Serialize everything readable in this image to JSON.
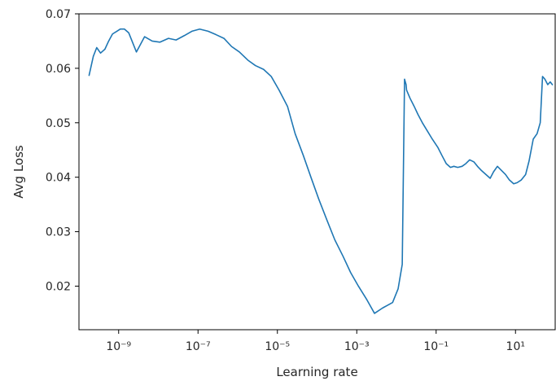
{
  "chart_data": {
    "type": "line",
    "title": "",
    "xlabel": "Learning rate",
    "ylabel": "Avg Loss",
    "x_scale": "log",
    "xlim": [
      1e-10,
      100.0
    ],
    "ylim": [
      0.012,
      0.07
    ],
    "grid": false,
    "line_color": "#1f77b4",
    "x_ticks": [
      {
        "value": 1e-09,
        "label": "10⁻⁹"
      },
      {
        "value": 1e-07,
        "label": "10⁻⁷"
      },
      {
        "value": 1e-05,
        "label": "10⁻⁵"
      },
      {
        "value": 0.001,
        "label": "10⁻³"
      },
      {
        "value": 0.1,
        "label": "10⁻¹"
      },
      {
        "value": 10,
        "label": "10¹"
      }
    ],
    "y_ticks": [
      {
        "value": 0.02,
        "label": "0.02"
      },
      {
        "value": 0.03,
        "label": "0.03"
      },
      {
        "value": 0.04,
        "label": "0.04"
      },
      {
        "value": 0.05,
        "label": "0.05"
      },
      {
        "value": 0.06,
        "label": "0.06"
      },
      {
        "value": 0.07,
        "label": "0.07"
      }
    ],
    "series": [
      {
        "x": [
          1.8e-10,
          2.3e-10,
          2.8e-10,
          3.5e-10,
          4.5e-10,
          5.6e-10,
          7e-10,
          9e-10,
          1.1e-09,
          1.4e-09,
          1.8e-09,
          2.8e-09,
          4.5e-09,
          7e-09,
          1.1e-08,
          1.8e-08,
          2.8e-08,
          4.5e-08,
          7e-08,
          1.1e-07,
          1.8e-07,
          2.8e-07,
          4.5e-07,
          7e-07,
          1.1e-06,
          1.8e-06,
          2.8e-06,
          4.5e-06,
          7e-06,
          1.1e-05,
          1.8e-05,
          2.8e-05,
          4.5e-05,
          7e-05,
          0.00011,
          0.00018,
          0.00028,
          0.00045,
          0.0007,
          0.0011,
          0.0018,
          0.0028,
          0.0045,
          0.006,
          0.008,
          0.011,
          0.014,
          0.016,
          0.0175,
          0.018,
          0.022,
          0.028,
          0.035,
          0.045,
          0.06,
          0.08,
          0.11,
          0.14,
          0.18,
          0.23,
          0.28,
          0.35,
          0.45,
          0.56,
          0.7,
          0.9,
          1.1,
          1.4,
          1.8,
          2.3,
          2.8,
          3.5,
          4.5,
          5.6,
          7,
          9,
          11,
          14,
          18,
          22,
          28,
          35,
          42,
          48,
          55,
          65,
          75,
          85
        ],
        "y": [
          0.0587,
          0.0622,
          0.0638,
          0.0628,
          0.0635,
          0.065,
          0.0663,
          0.0668,
          0.0672,
          0.0672,
          0.0665,
          0.063,
          0.0658,
          0.065,
          0.0648,
          0.0655,
          0.0652,
          0.066,
          0.0668,
          0.0672,
          0.0668,
          0.0662,
          0.0655,
          0.064,
          0.063,
          0.0615,
          0.0605,
          0.0598,
          0.0585,
          0.056,
          0.053,
          0.048,
          0.044,
          0.04,
          0.036,
          0.032,
          0.0285,
          0.0255,
          0.0225,
          0.02,
          0.0175,
          0.015,
          0.016,
          0.0165,
          0.017,
          0.0195,
          0.024,
          0.058,
          0.057,
          0.056,
          0.0545,
          0.053,
          0.0515,
          0.05,
          0.0485,
          0.047,
          0.0455,
          0.044,
          0.0425,
          0.0418,
          0.042,
          0.0418,
          0.042,
          0.0425,
          0.0432,
          0.0428,
          0.042,
          0.0412,
          0.0405,
          0.0398,
          0.041,
          0.042,
          0.0412,
          0.0405,
          0.0395,
          0.0388,
          0.039,
          0.0395,
          0.0405,
          0.043,
          0.047,
          0.048,
          0.05,
          0.0585,
          0.058,
          0.057,
          0.0575,
          0.057
        ]
      }
    ]
  }
}
